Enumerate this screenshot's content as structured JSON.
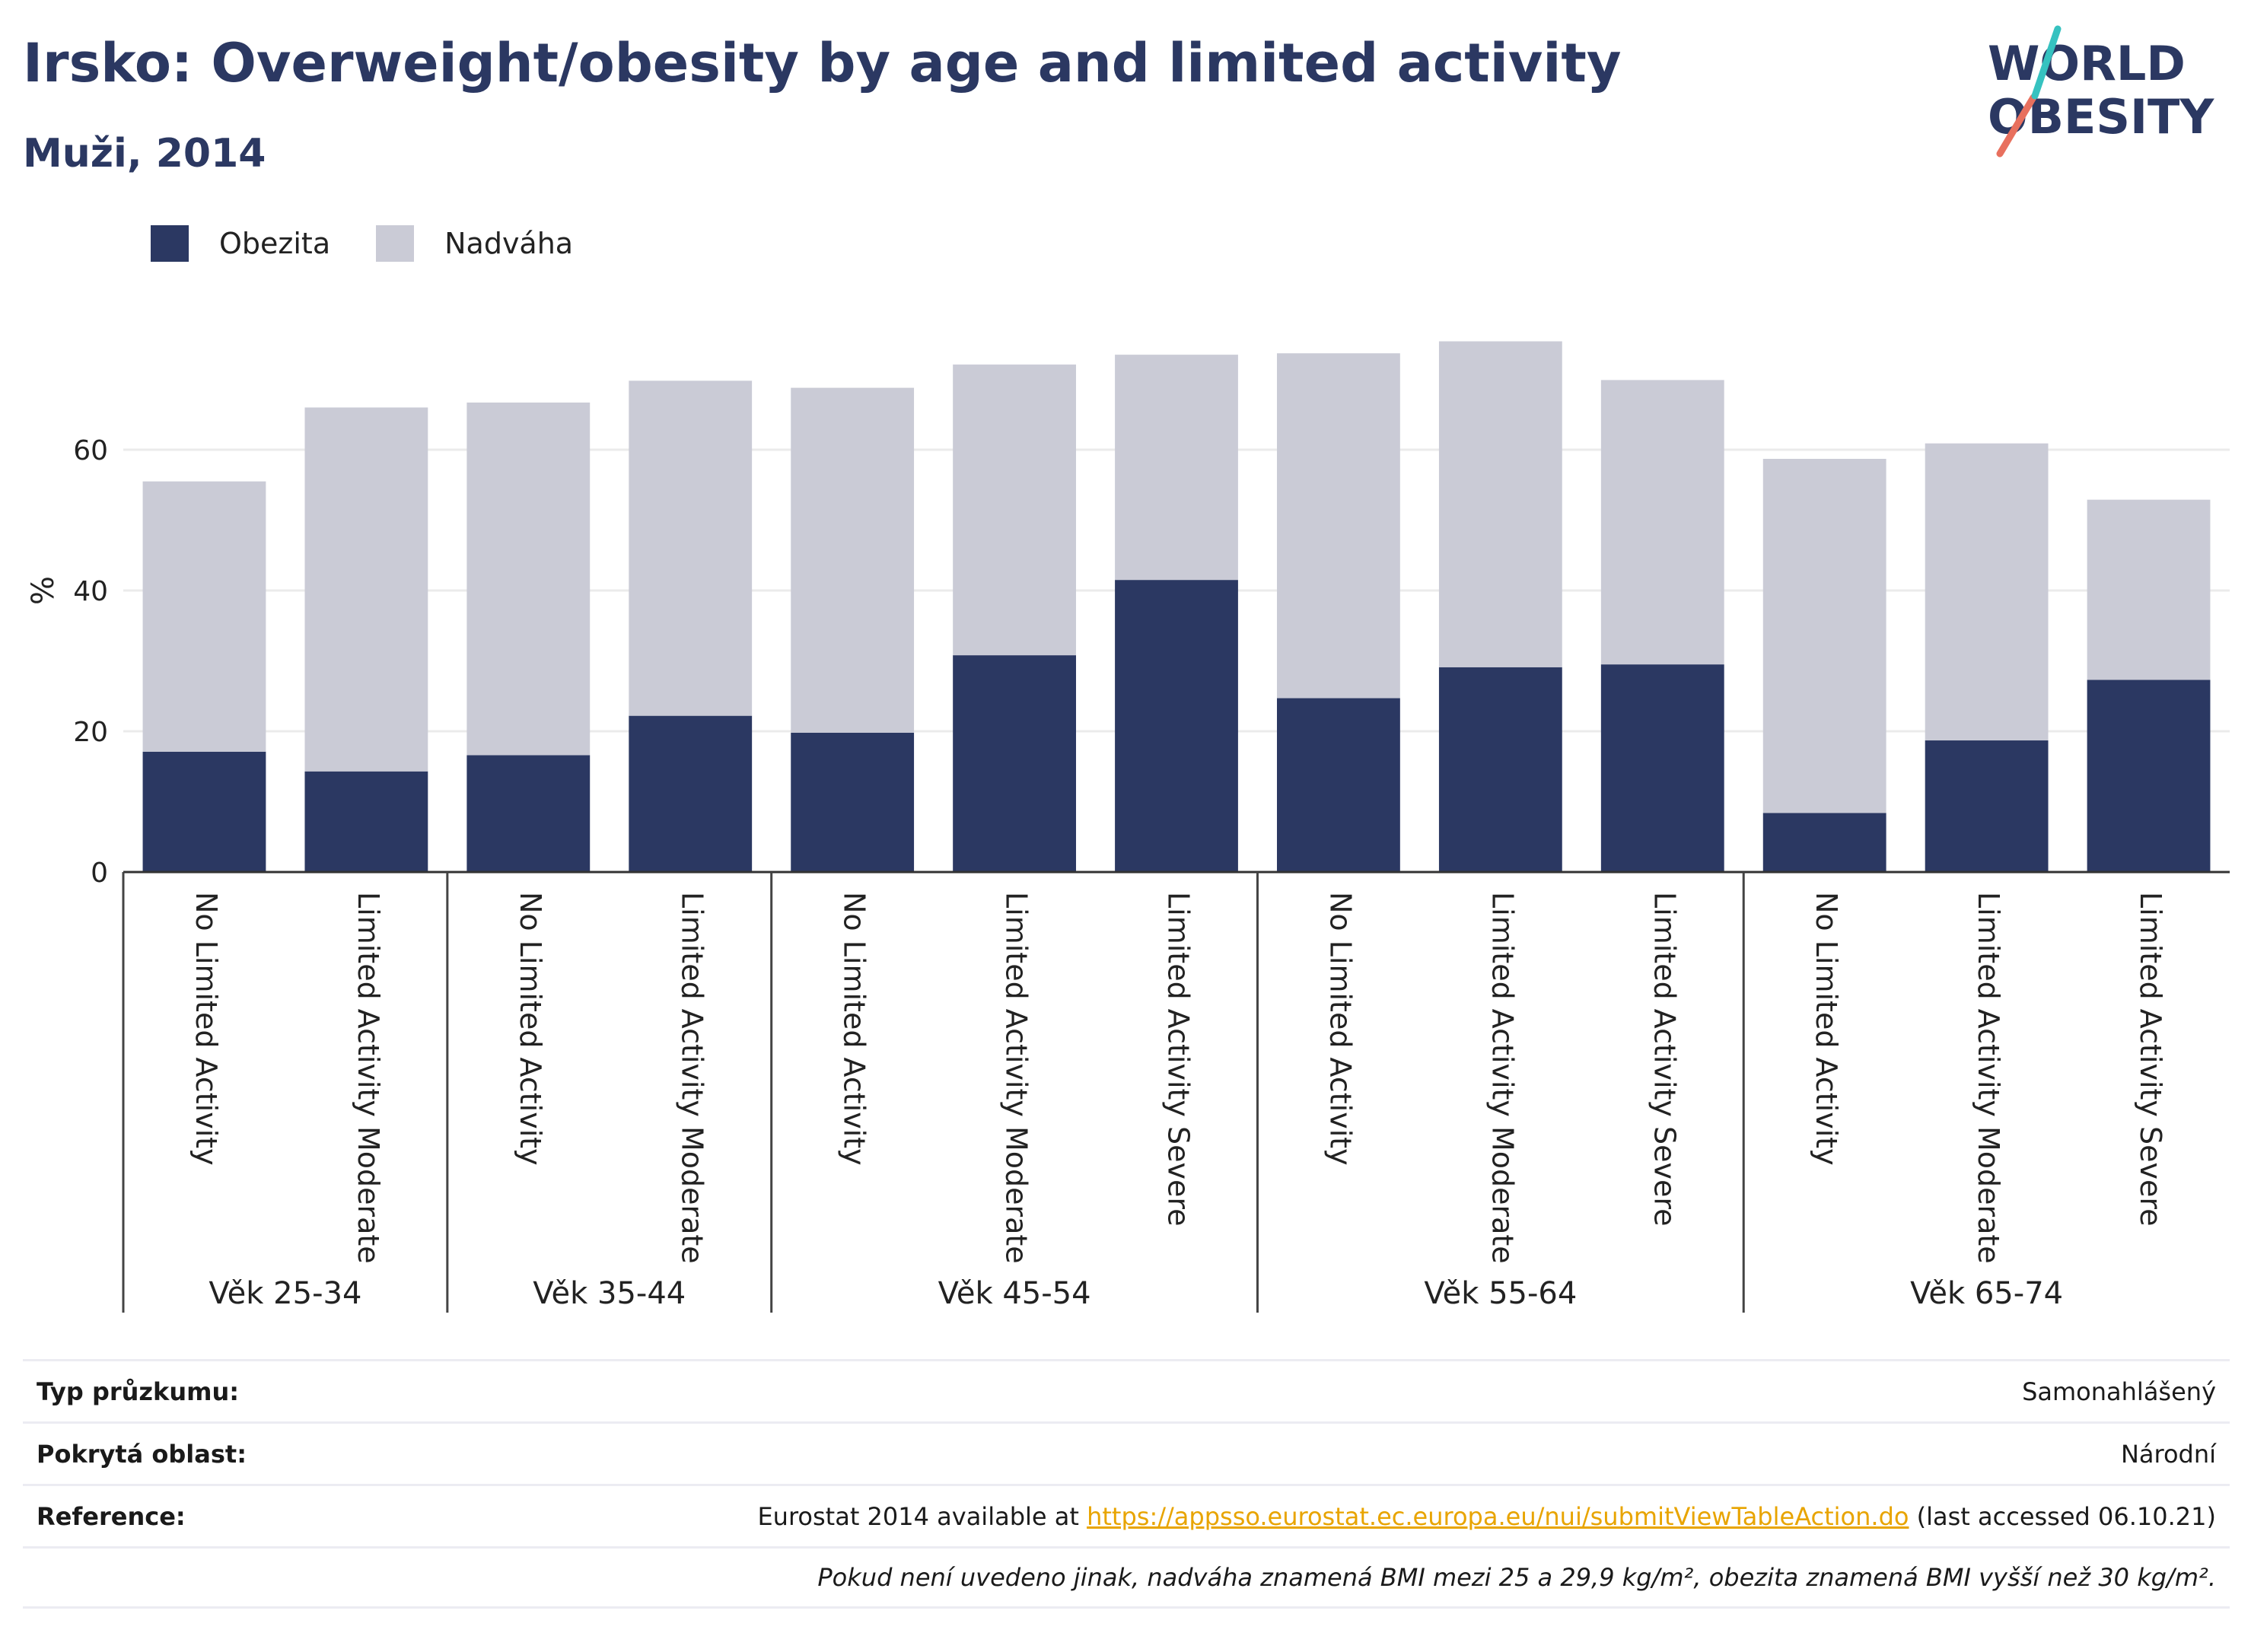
{
  "header": {
    "title": "Irsko: Overweight/obesity by age and limited activity",
    "subtitle": "Muži, 2014"
  },
  "logo": {
    "line1": "WORLD",
    "line2": "OBESITY",
    "colors": [
      "#2b3862",
      "#e8705e",
      "#36c2c0"
    ]
  },
  "legend": [
    {
      "label": "Obezita",
      "color": "#2b3862"
    },
    {
      "label": "Nadváha",
      "color": "#cacbd6"
    }
  ],
  "chart_data": {
    "type": "bar",
    "stacked": true,
    "ylabel": "%",
    "ylim": [
      0,
      80
    ],
    "yticks": [
      0,
      20,
      40,
      60
    ],
    "grid": true,
    "legend_position": "top-left",
    "groups": [
      {
        "label": "Věk 25-34",
        "categories": [
          "No Limited Activity",
          "Limited Activity Moderate"
        ]
      },
      {
        "label": "Věk 35-44",
        "categories": [
          "No Limited Activity",
          "Limited Activity Moderate"
        ]
      },
      {
        "label": "Věk 45-54",
        "categories": [
          "No Limited Activity",
          "Limited Activity Moderate",
          "Limited Activity Severe"
        ]
      },
      {
        "label": "Věk 55-64",
        "categories": [
          "No Limited Activity",
          "Limited Activity Moderate",
          "Limited Activity Severe"
        ]
      },
      {
        "label": "Věk 65-74",
        "categories": [
          "No Limited Activity",
          "Limited Activity Moderate",
          "Limited Activity Severe"
        ]
      }
    ],
    "series": [
      {
        "name": "Obezita",
        "color": "#2b3862",
        "values": [
          17.1,
          14.3,
          16.6,
          22.2,
          19.8,
          30.8,
          41.5,
          24.7,
          29.1,
          29.5,
          8.4,
          18.7,
          27.3
        ]
      },
      {
        "name": "Nadváha",
        "color": "#cacbd6",
        "values": [
          38.4,
          51.7,
          50.1,
          47.6,
          49.0,
          41.3,
          32.0,
          49.0,
          46.3,
          40.4,
          50.3,
          42.2,
          25.6
        ]
      }
    ]
  },
  "footer": {
    "survey_label": "Typ průzkumu:",
    "survey_value": "Samonahlášený",
    "area_label": "Pokrytá oblast:",
    "area_value": "Národní",
    "ref_label": "Reference:",
    "ref_prefix": "Eurostat 2014 available at ",
    "ref_link": "https://appsso.eurostat.ec.europa.eu/nui/submitViewTableAction.do",
    "ref_suffix": " (last accessed 06.10.21)",
    "note": "Pokud není uvedeno jinak, nadváha znamená BMI mezi 25 a 29,9 kg/m², obezita znamená BMI vyšší než 30 kg/m²."
  }
}
